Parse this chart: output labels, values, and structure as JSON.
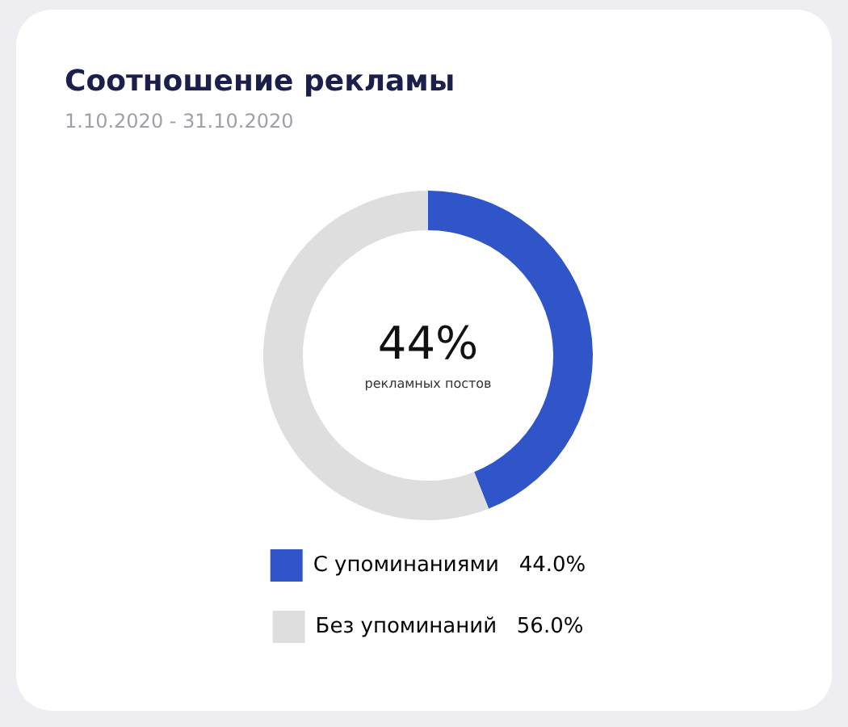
{
  "chart_data": {
    "type": "donut",
    "title": "Соотношение рекламы",
    "subtitle": "1.10.2020 - 31.10.2020",
    "categories": [
      "С упоминаниями",
      "Без упоминаний"
    ],
    "values": [
      44,
      56
    ],
    "colors": [
      "#2f55c9",
      "#dedede"
    ],
    "value_labels": [
      "44.0%",
      "56.0%"
    ],
    "annotations": [
      "44%",
      "рекламных постов"
    ],
    "legend": "bottom"
  }
}
